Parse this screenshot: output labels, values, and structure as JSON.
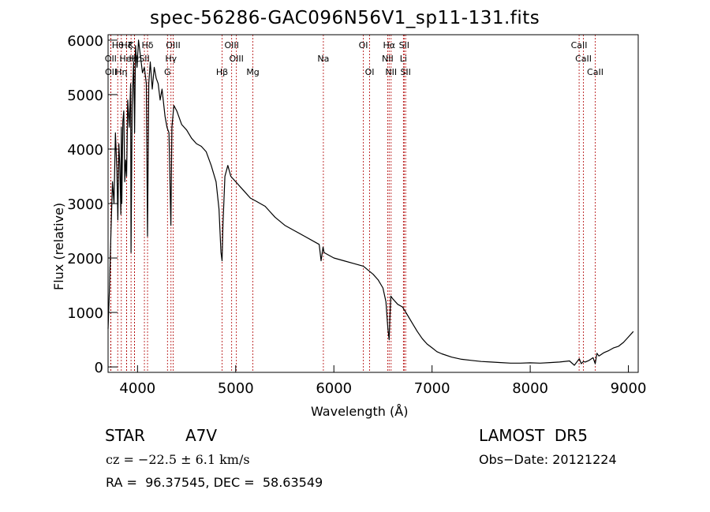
{
  "chart_data": {
    "type": "line",
    "title": "spec-56286-GAC096N56V1_sp11-131.fits",
    "xlabel": "Wavelength (Å)",
    "ylabel": "Flux (relative)",
    "xlim": [
      3700,
      9100
    ],
    "ylim": [
      -100,
      6100
    ],
    "xticks": [
      4000,
      5000,
      6000,
      7000,
      8000,
      9000
    ],
    "yticks": [
      0,
      1000,
      2000,
      3000,
      4000,
      5000,
      6000
    ],
    "line_color": "#000000",
    "marker_color": "#b00000",
    "x": [
      3700,
      3715,
      3730,
      3745,
      3760,
      3775,
      3790,
      3800,
      3810,
      3820,
      3830,
      3835,
      3840,
      3850,
      3860,
      3870,
      3880,
      3889,
      3900,
      3915,
      3930,
      3934,
      3945,
      3960,
      3970,
      3980,
      3995,
      4010,
      4030,
      4050,
      4070,
      4090,
      4102,
      4115,
      4130,
      4150,
      4170,
      4190,
      4210,
      4230,
      4250,
      4280,
      4300,
      4320,
      4340,
      4350,
      4370,
      4400,
      4450,
      4500,
      4550,
      4600,
      4650,
      4700,
      4750,
      4800,
      4830,
      4850,
      4861,
      4870,
      4890,
      4920,
      4950,
      5000,
      5050,
      5100,
      5150,
      5200,
      5250,
      5300,
      5350,
      5400,
      5500,
      5600,
      5700,
      5800,
      5850,
      5870,
      5890,
      5900,
      5950,
      6000,
      6100,
      6200,
      6300,
      6400,
      6450,
      6500,
      6530,
      6550,
      6563,
      6570,
      6580,
      6600,
      6650,
      6700,
      6750,
      6800,
      6850,
      6900,
      6950,
      7000,
      7050,
      7100,
      7200,
      7300,
      7400,
      7500,
      7600,
      7700,
      7800,
      7900,
      8000,
      8100,
      8200,
      8300,
      8400,
      8450,
      8500,
      8520,
      8542,
      8560,
      8600,
      8640,
      8662,
      8680,
      8700,
      8750,
      8800,
      8850,
      8900,
      8950,
      9000,
      9050
    ],
    "y": [
      700,
      1500,
      2500,
      3400,
      3000,
      4300,
      3600,
      2700,
      4100,
      3700,
      2800,
      4400,
      3000,
      4500,
      4700,
      3400,
      3800,
      3500,
      4900,
      4400,
      5200,
      2100,
      4800,
      5600,
      4300,
      5900,
      5500,
      6000,
      5700,
      5400,
      5500,
      5200,
      2400,
      5200,
      5600,
      5100,
      5500,
      5300,
      5200,
      4900,
      5100,
      4600,
      4400,
      4300,
      2600,
      4400,
      4800,
      4700,
      4450,
      4350,
      4200,
      4100,
      4050,
      3950,
      3700,
      3400,
      2900,
      2100,
      1950,
      2600,
      3500,
      3700,
      3500,
      3400,
      3300,
      3200,
      3100,
      3050,
      3000,
      2950,
      2850,
      2750,
      2600,
      2500,
      2400,
      2300,
      2250,
      1950,
      2200,
      2100,
      2050,
      2000,
      1950,
      1900,
      1850,
      1700,
      1600,
      1450,
      1200,
      700,
      500,
      900,
      1300,
      1250,
      1150,
      1100,
      950,
      800,
      650,
      520,
      420,
      350,
      280,
      240,
      180,
      140,
      120,
      100,
      90,
      80,
      70,
      70,
      75,
      70,
      80,
      90,
      110,
      30,
      150,
      60,
      100,
      90,
      120,
      170,
      60,
      250,
      200,
      260,
      300,
      350,
      380,
      450,
      550,
      650
    ]
  },
  "lines": [
    {
      "name": "Hθ",
      "x": 3798,
      "row": 0
    },
    {
      "name": "OII",
      "x": 3727,
      "row": 1
    },
    {
      "name": "OII",
      "x": 3729,
      "row": 2
    },
    {
      "name": "Hη",
      "x": 3835,
      "row": 2
    },
    {
      "name": "Hζ",
      "x": 3889,
      "row": 0
    },
    {
      "name": "HeI",
      "x": 3889,
      "row": 1
    },
    {
      "name": "K",
      "x": 3934,
      "row": 0
    },
    {
      "name": "H",
      "x": 3969,
      "row": 1
    },
    {
      "name": "Hε",
      "x": 3970,
      "row": 1
    },
    {
      "name": "Hδ",
      "x": 4102,
      "row": 0
    },
    {
      "name": "SII",
      "x": 4070,
      "row": 1
    },
    {
      "name": "OIII",
      "x": 4363,
      "row": 0
    },
    {
      "name": "Hγ",
      "x": 4341,
      "row": 1
    },
    {
      "name": "G",
      "x": 4305,
      "row": 2
    },
    {
      "name": "OIII",
      "x": 4959,
      "row": 0
    },
    {
      "name": "OIII",
      "x": 5007,
      "row": 1
    },
    {
      "name": "Hβ",
      "x": 4861,
      "row": 2
    },
    {
      "name": "Mg",
      "x": 5175,
      "row": 2
    },
    {
      "name": "Na",
      "x": 5893,
      "row": 1
    },
    {
      "name": "OI",
      "x": 6300,
      "row": 0
    },
    {
      "name": "OI",
      "x": 6364,
      "row": 2
    },
    {
      "name": "Hα",
      "x": 6563,
      "row": 0
    },
    {
      "name": "NII",
      "x": 6548,
      "row": 1
    },
    {
      "name": "NII",
      "x": 6583,
      "row": 2
    },
    {
      "name": "SII",
      "x": 6716,
      "row": 0
    },
    {
      "name": "Li",
      "x": 6708,
      "row": 1
    },
    {
      "name": "SII",
      "x": 6731,
      "row": 2
    },
    {
      "name": "CaII",
      "x": 8498,
      "row": 0
    },
    {
      "name": "CaII",
      "x": 8542,
      "row": 1
    },
    {
      "name": "CaII",
      "x": 8662,
      "row": 2
    }
  ],
  "info": {
    "object": "STAR",
    "subclass": "A7V",
    "survey": "LAMOST  DR5",
    "cz": "cz = −22.5 ± 6.1 km/s",
    "obs_date": "Obs−Date: 20121224",
    "coords": "RA =  96.37545, DEC =  58.63549"
  }
}
